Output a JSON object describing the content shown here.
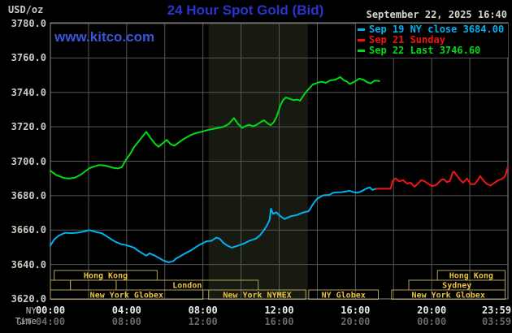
{
  "header": {
    "unit_label": "USD/oz",
    "title": "24 Hour Spot Gold (Bid)",
    "datetime": "September 22, 2025 16:40",
    "watermark": "www.kitco.com"
  },
  "legend": {
    "items": [
      {
        "label": "Sep 19 NY close 3684.00",
        "color": "#00b2f0"
      },
      {
        "label": "Sep 21 Sunday",
        "color": "#f01414"
      },
      {
        "label": "Sep 22 Last 3746.60",
        "color": "#00dc14"
      }
    ]
  },
  "axes": {
    "ny_label": "NY Time",
    "gmt_label": "GMT",
    "y_ticks": [
      "3780.0",
      "3760.0",
      "3740.0",
      "3720.0",
      "3700.0",
      "3680.0",
      "3660.0",
      "3640.0",
      "3620.0"
    ],
    "x_ticks_ny": [
      "00:00",
      "04:00",
      "08:00",
      "12:00",
      "16:00",
      "20:00",
      "23:59"
    ],
    "x_ticks_gmt": [
      "04:00",
      "08:00",
      "12:00",
      "16:00",
      "20:00",
      "00:00",
      "03:59"
    ]
  },
  "sessions": {
    "rows": [
      [
        {
          "label": "Hong Kong",
          "start": 0.2,
          "end": 5.6
        },
        {
          "label": "Hong Kong",
          "start": 20.3,
          "end": 23.85
        }
      ],
      [
        {
          "label": "",
          "start": 0.0,
          "end": 1.05
        },
        {
          "label": "",
          "start": 1.05,
          "end": 3.45
        },
        {
          "label": "London",
          "start": 3.45,
          "end": 10.9
        },
        {
          "label": "Sydney",
          "start": 18.8,
          "end": 23.85
        }
      ],
      [
        {
          "label": "New York Globex",
          "start": 0.0,
          "end": 8.0
        },
        {
          "label": "New York NYMEX",
          "start": 8.3,
          "end": 13.4
        },
        {
          "label": "NY Globex",
          "start": 13.55,
          "end": 17.2
        },
        {
          "label": "New York Globex",
          "start": 17.9,
          "end": 23.85
        }
      ]
    ]
  },
  "colors": {
    "background": "#000000",
    "title_blue": "#2a33cf",
    "watermark_blue": "#3c55d8",
    "gridline": "#575757",
    "plot_border": "#8a8a8a",
    "nymex_band": "#171a11",
    "session_border": "#b0a058",
    "session_label": "#ecc43c"
  },
  "chart_data": {
    "type": "line",
    "title": "24 Hour Spot Gold (Bid)",
    "ylabel": "USD/oz",
    "ylim": [
      3620,
      3780
    ],
    "y_gridline_step": 20,
    "xlim_hours": [
      0,
      24
    ],
    "x_gridline_step_hours": 2,
    "x_label_positions_hours": [
      0,
      4,
      8,
      12,
      16,
      20,
      24
    ],
    "grid": true,
    "legend_position": "top-right",
    "nymex_band_hours": [
      8.3,
      13.5
    ],
    "series": [
      {
        "name": "Sep 22 (Last 3746.60)",
        "color": "#00dc14",
        "points": [
          [
            0.0,
            3694.5
          ],
          [
            0.3,
            3692.0
          ],
          [
            0.7,
            3690.3
          ],
          [
            1.0,
            3689.9
          ],
          [
            1.3,
            3690.5
          ],
          [
            1.6,
            3692.2
          ],
          [
            2.05,
            3696.0
          ],
          [
            2.3,
            3697.0
          ],
          [
            2.55,
            3697.8
          ],
          [
            2.9,
            3697.4
          ],
          [
            3.3,
            3696.2
          ],
          [
            3.55,
            3695.8
          ],
          [
            3.75,
            3696.6
          ],
          [
            3.96,
            3700.8
          ],
          [
            4.2,
            3704.5
          ],
          [
            4.4,
            3708.4
          ],
          [
            4.7,
            3712.5
          ],
          [
            5.03,
            3717.1
          ],
          [
            5.25,
            3713.5
          ],
          [
            5.5,
            3710.0
          ],
          [
            5.67,
            3708.4
          ],
          [
            5.9,
            3710.5
          ],
          [
            6.1,
            3712.4
          ],
          [
            6.3,
            3710.0
          ],
          [
            6.5,
            3709.0
          ],
          [
            6.75,
            3711.0
          ],
          [
            7.0,
            3713.0
          ],
          [
            7.37,
            3715.3
          ],
          [
            7.7,
            3716.5
          ],
          [
            8.0,
            3717.3
          ],
          [
            8.23,
            3718.1
          ],
          [
            8.6,
            3718.9
          ],
          [
            9.08,
            3720.0
          ],
          [
            9.35,
            3721.5
          ],
          [
            9.63,
            3725.1
          ],
          [
            9.85,
            3721.5
          ],
          [
            10.06,
            3719.4
          ],
          [
            10.25,
            3720.5
          ],
          [
            10.45,
            3721.2
          ],
          [
            10.6,
            3720.3
          ],
          [
            10.78,
            3720.9
          ],
          [
            11.0,
            3722.5
          ],
          [
            11.2,
            3723.8
          ],
          [
            11.4,
            3722.0
          ],
          [
            11.55,
            3720.9
          ],
          [
            11.7,
            3722.5
          ],
          [
            11.85,
            3725.5
          ],
          [
            11.95,
            3728.5
          ],
          [
            12.05,
            3732.0
          ],
          [
            12.2,
            3735.5
          ],
          [
            12.35,
            3737.0
          ],
          [
            12.55,
            3736.3
          ],
          [
            12.75,
            3735.5
          ],
          [
            12.95,
            3735.8
          ],
          [
            13.1,
            3735.2
          ],
          [
            13.35,
            3739.4
          ],
          [
            13.55,
            3742.0
          ],
          [
            13.77,
            3744.6
          ],
          [
            14.0,
            3745.5
          ],
          [
            14.2,
            3746.2
          ],
          [
            14.45,
            3745.6
          ],
          [
            14.7,
            3747.0
          ],
          [
            14.95,
            3747.4
          ],
          [
            15.2,
            3748.9
          ],
          [
            15.4,
            3747.0
          ],
          [
            15.55,
            3746.3
          ],
          [
            15.7,
            3744.9
          ],
          [
            15.95,
            3746.2
          ],
          [
            16.2,
            3748.0
          ],
          [
            16.45,
            3747.2
          ],
          [
            16.6,
            3746.0
          ],
          [
            16.8,
            3745.2
          ],
          [
            17.0,
            3746.8
          ],
          [
            17.25,
            3746.6
          ]
        ]
      },
      {
        "name": "Sep 19 (NY close 3684.00)",
        "color": "#00b2f0",
        "points": [
          [
            0.0,
            3651.0
          ],
          [
            0.2,
            3654.5
          ],
          [
            0.45,
            3656.8
          ],
          [
            0.77,
            3658.4
          ],
          [
            1.1,
            3658.2
          ],
          [
            1.5,
            3658.6
          ],
          [
            1.8,
            3659.2
          ],
          [
            2.05,
            3660.0
          ],
          [
            2.35,
            3659.0
          ],
          [
            2.69,
            3658.2
          ],
          [
            3.0,
            3656.0
          ],
          [
            3.32,
            3653.7
          ],
          [
            3.7,
            3651.8
          ],
          [
            3.96,
            3651.3
          ],
          [
            4.2,
            3650.5
          ],
          [
            4.39,
            3649.8
          ],
          [
            4.6,
            3648.0
          ],
          [
            4.85,
            3646.3
          ],
          [
            5.03,
            3645.1
          ],
          [
            5.2,
            3646.5
          ],
          [
            5.45,
            3645.3
          ],
          [
            5.7,
            3643.8
          ],
          [
            5.95,
            3642.2
          ],
          [
            6.2,
            3641.2
          ],
          [
            6.45,
            3642.0
          ],
          [
            6.6,
            3643.5
          ],
          [
            6.8,
            3644.7
          ],
          [
            7.0,
            3646.0
          ],
          [
            7.37,
            3648.2
          ],
          [
            7.8,
            3651.3
          ],
          [
            8.2,
            3653.5
          ],
          [
            8.44,
            3653.7
          ],
          [
            8.7,
            3655.6
          ],
          [
            8.87,
            3655.0
          ],
          [
            9.1,
            3652.3
          ],
          [
            9.3,
            3650.8
          ],
          [
            9.51,
            3649.8
          ],
          [
            9.75,
            3650.6
          ],
          [
            10.0,
            3651.6
          ],
          [
            10.14,
            3652.1
          ],
          [
            10.45,
            3653.8
          ],
          [
            10.78,
            3655.0
          ],
          [
            11.0,
            3657.0
          ],
          [
            11.2,
            3659.9
          ],
          [
            11.35,
            3662.5
          ],
          [
            11.5,
            3666.0
          ],
          [
            11.57,
            3672.4
          ],
          [
            11.68,
            3669.4
          ],
          [
            11.85,
            3670.3
          ],
          [
            12.05,
            3668.2
          ],
          [
            12.28,
            3666.4
          ],
          [
            12.6,
            3668.0
          ],
          [
            12.92,
            3668.7
          ],
          [
            13.2,
            3670.0
          ],
          [
            13.55,
            3671.0
          ],
          [
            13.77,
            3674.9
          ],
          [
            13.98,
            3678.1
          ],
          [
            14.3,
            3680.2
          ],
          [
            14.62,
            3680.4
          ],
          [
            14.84,
            3681.7
          ],
          [
            15.1,
            3681.9
          ],
          [
            15.26,
            3682.0
          ],
          [
            15.5,
            3682.4
          ],
          [
            15.69,
            3682.8
          ],
          [
            15.9,
            3682.0
          ],
          [
            16.11,
            3681.7
          ],
          [
            16.3,
            3682.5
          ],
          [
            16.54,
            3683.9
          ],
          [
            16.75,
            3684.8
          ],
          [
            16.9,
            3683.3
          ],
          [
            17.0,
            3683.8
          ],
          [
            17.1,
            3684.0
          ]
        ]
      },
      {
        "name": "Sep 21 Sunday",
        "color": "#f01414",
        "points": [
          [
            17.1,
            3684.0
          ],
          [
            17.5,
            3684.0
          ],
          [
            17.85,
            3684.1
          ],
          [
            17.95,
            3688.5
          ],
          [
            18.1,
            3690.1
          ],
          [
            18.3,
            3688.3
          ],
          [
            18.5,
            3689.0
          ],
          [
            18.7,
            3687.0
          ],
          [
            18.9,
            3687.5
          ],
          [
            19.1,
            3685.2
          ],
          [
            19.25,
            3686.7
          ],
          [
            19.45,
            3689.0
          ],
          [
            19.6,
            3688.5
          ],
          [
            19.85,
            3686.7
          ],
          [
            20.05,
            3685.5
          ],
          [
            20.25,
            3686.3
          ],
          [
            20.5,
            3689.2
          ],
          [
            20.65,
            3689.5
          ],
          [
            20.8,
            3687.8
          ],
          [
            20.95,
            3688.5
          ],
          [
            21.1,
            3693.4
          ],
          [
            21.17,
            3694.0
          ],
          [
            21.35,
            3691.3
          ],
          [
            21.5,
            3689.0
          ],
          [
            21.65,
            3687.5
          ],
          [
            21.85,
            3690.0
          ],
          [
            22.05,
            3686.7
          ],
          [
            22.25,
            3686.7
          ],
          [
            22.45,
            3689.5
          ],
          [
            22.55,
            3691.3
          ],
          [
            22.7,
            3689.0
          ],
          [
            22.9,
            3686.7
          ],
          [
            23.1,
            3685.9
          ],
          [
            23.3,
            3687.5
          ],
          [
            23.5,
            3689.0
          ],
          [
            23.65,
            3689.5
          ],
          [
            23.8,
            3690.6
          ],
          [
            23.9,
            3693.0
          ],
          [
            23.98,
            3696.4
          ]
        ]
      }
    ]
  }
}
